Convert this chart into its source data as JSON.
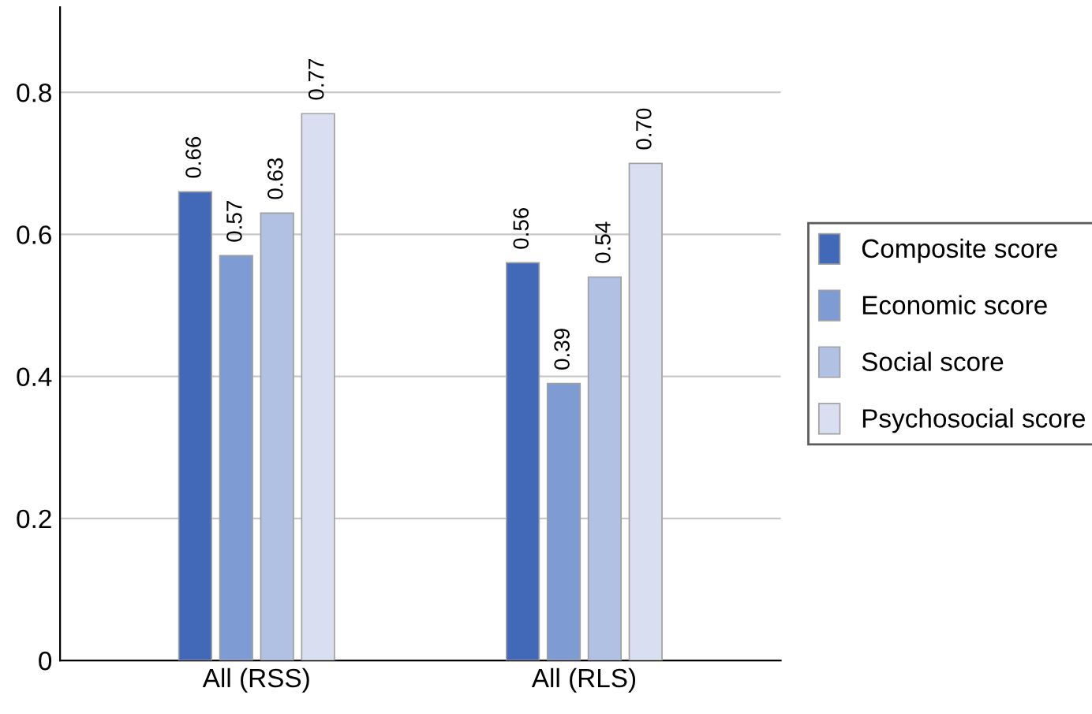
{
  "chart_data": {
    "type": "bar",
    "categories": [
      "All (RSS)",
      "All (RLS)"
    ],
    "series": [
      {
        "name": "Composite score",
        "color": "#4169b8",
        "values": [
          0.66,
          0.56
        ]
      },
      {
        "name": "Economic score",
        "color": "#7f9bd4",
        "values": [
          0.57,
          0.39
        ]
      },
      {
        "name": "Social score",
        "color": "#b1c1e3",
        "values": [
          0.63,
          0.54
        ]
      },
      {
        "name": "Psychosocial score",
        "color": "#d9dff1",
        "values": [
          0.77,
          0.7
        ]
      }
    ],
    "value_labels": [
      [
        "0.66",
        "0.56"
      ],
      [
        "0.57",
        "0.39"
      ],
      [
        "0.63",
        "0.54"
      ],
      [
        "0.77",
        "0.70"
      ]
    ],
    "ylim": [
      0,
      0.92
    ],
    "yticks": [
      0,
      0.2,
      0.4,
      0.6,
      0.8
    ],
    "grid": "y",
    "legend": "right"
  }
}
